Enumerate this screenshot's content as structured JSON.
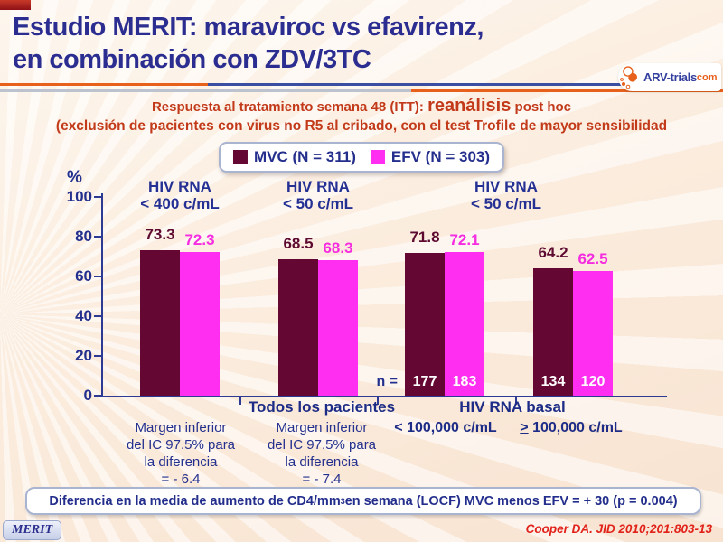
{
  "title": {
    "line1": "Estudio MERIT: maraviroc vs efavirenz,",
    "line2": "en combinación con ZDV/3TC"
  },
  "logo": {
    "brand": "ARV-trials",
    "tld": "com"
  },
  "banner": {
    "line1_pre": "Respuesta al tratamiento  semana 48 (ITT): ",
    "line1_emphasis": "reanálisis",
    "line1_post": " post hoc",
    "line2": "(exclusión de pacientes con virus no R5 al cribado, con el test Trofile de mayor sensibilidad"
  },
  "legend": {
    "items": [
      {
        "label": "MVC (N = 311)",
        "color": "#640833"
      },
      {
        "label": "EFV (N = 303)",
        "color": "#ff2ef0"
      }
    ]
  },
  "chart_data": {
    "type": "bar",
    "title": "Respuesta al tratamiento semana 48 (ITT): reanálisis post hoc",
    "ylabel": "%",
    "ylim": [
      0,
      100
    ],
    "yticks": [
      0,
      20,
      40,
      60,
      80,
      100
    ],
    "grid": false,
    "legend_position": "top",
    "categories": [
      "HIV RNA < 400 c/mL — Todos los pacientes",
      "HIV RNA < 50 c/mL — Todos los pacientes",
      "HIV RNA < 50 c/mL — HIV RNA basal < 100,000 c/mL",
      "HIV RNA < 50 c/mL — HIV RNA basal > 100,000 c/mL"
    ],
    "series": [
      {
        "name": "MVC",
        "color": "#640833",
        "label_color": "#5e0a30",
        "values": [
          73.3,
          68.5,
          71.8,
          64.2
        ]
      },
      {
        "name": "EFV",
        "color": "#ff2ef0",
        "label_color": "#f62ce0",
        "values": [
          72.3,
          68.3,
          72.1,
          62.5
        ]
      }
    ],
    "group_headers": [
      {
        "line1": "HIV RNA",
        "line2": "< 400 c/mL"
      },
      {
        "line1": "HIV RNA",
        "line2": "< 50 c/mL"
      },
      {
        "line1": "HIV RNA",
        "line2": "< 50 c/mL"
      }
    ],
    "n_prefix": "n =",
    "n_values": [
      {
        "mvc": "177",
        "efv": "183"
      },
      {
        "mvc": "134",
        "efv": "120"
      }
    ],
    "x_section_labels": [
      "Todos los pacientes",
      "HIV RNA basal"
    ],
    "x_sub_labels": [
      {
        "symbol": "<",
        "underlined": false,
        "text": " 100,000 c/mL"
      },
      {
        "symbol": ">",
        "underlined": true,
        "text": " 100,000 c/mL"
      }
    ],
    "footnotes": [
      {
        "lines": [
          "Margen inferior",
          "del IC 97.5% para",
          "la diferencia",
          "= - 6.4"
        ]
      },
      {
        "lines": [
          "Margen inferior",
          "del IC 97.5% para",
          "la diferencia",
          "= - 7.4"
        ]
      }
    ]
  },
  "cd4_note": {
    "pre": "Diferencia en la media de aumento de CD4/mm",
    "sup": "3",
    "post": " en semana (LOCF) MVC menos EFV = + 30  (p = 0.004)"
  },
  "badge": "MERIT",
  "reference": "Cooper DA. JID 2010;201:803-13",
  "colors": {
    "mvc_maroon": "#640833",
    "efv_magenta": "#ff2ef0",
    "navy_text": "#24308e",
    "banner_red": "#c23a1a",
    "reference_red": "#e1221a",
    "accent_orange": "#e8611c"
  }
}
